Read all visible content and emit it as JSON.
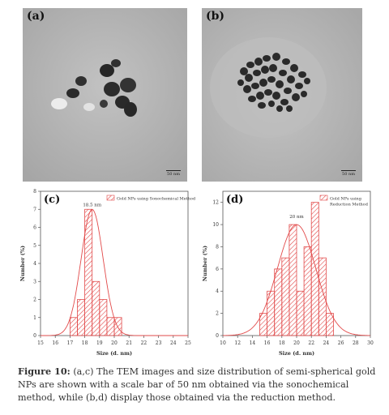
{
  "panels": {
    "a": {
      "label": "(a)",
      "scale_text": "50 nm"
    },
    "b": {
      "label": "(b)",
      "scale_text": "50 nm"
    }
  },
  "colors": {
    "tem_background": "#b3b3b3",
    "particle": "#2a2a2a",
    "histogram_hatch": "#e24a4a",
    "fit_curve": "#e24a4a"
  },
  "chart_data": [
    {
      "type": "bar",
      "panel_label": "(c)",
      "title": "",
      "xlabel": "Size (d. nm)",
      "ylabel": "Number (%)",
      "xlim": [
        15,
        25
      ],
      "ylim": [
        0,
        8
      ],
      "xticks": [
        "15",
        "16",
        "17",
        "18",
        "19",
        "20",
        "21",
        "22",
        "23",
        "24",
        "25"
      ],
      "yticks": [
        "0",
        "1",
        "2",
        "3",
        "4",
        "5",
        "6",
        "7",
        "8"
      ],
      "bin_edges": [
        17.0,
        17.5,
        18.0,
        18.5,
        19.0,
        19.5,
        20.0,
        20.5
      ],
      "values": [
        1,
        2,
        7,
        3,
        2,
        1,
        1
      ],
      "legend": "Gold NPs using Sonochemical Method",
      "annotation": "18.5 nm",
      "fit": {
        "mean": 18.5,
        "sigma": 0.75,
        "peak": 7.0
      },
      "grid": false,
      "legend_position": "top-right"
    },
    {
      "type": "bar",
      "panel_label": "(d)",
      "title": "",
      "xlabel": "Size (d. nm)",
      "ylabel": "Number (%)",
      "xlim": [
        10,
        30
      ],
      "ylim": [
        0,
        13
      ],
      "xticks": [
        "10",
        "12",
        "14",
        "16",
        "18",
        "20",
        "22",
        "24",
        "26",
        "28",
        "30"
      ],
      "yticks": [
        "0",
        "2",
        "4",
        "6",
        "8",
        "10",
        "12"
      ],
      "bin_edges": [
        15,
        16,
        17,
        18,
        19,
        20,
        21,
        22,
        23,
        24,
        25
      ],
      "values": [
        2,
        4,
        6,
        7,
        10,
        4,
        8,
        12,
        7,
        2
      ],
      "legend": "Gold NPs using Reduction Method",
      "annotation": "20 nm",
      "fit": {
        "mean": 20.0,
        "sigma": 2.6,
        "peak": 10.0
      },
      "grid": false,
      "legend_position": "top-right"
    }
  ],
  "caption": {
    "lead": "Figure 10:",
    "text": " (a,c) The TEM images and size distribution of semi-spherical gold NPs are shown with a scale bar of 50 nm obtained via the sonochemical method, while (b,d) display those obtained via the reduction method."
  }
}
